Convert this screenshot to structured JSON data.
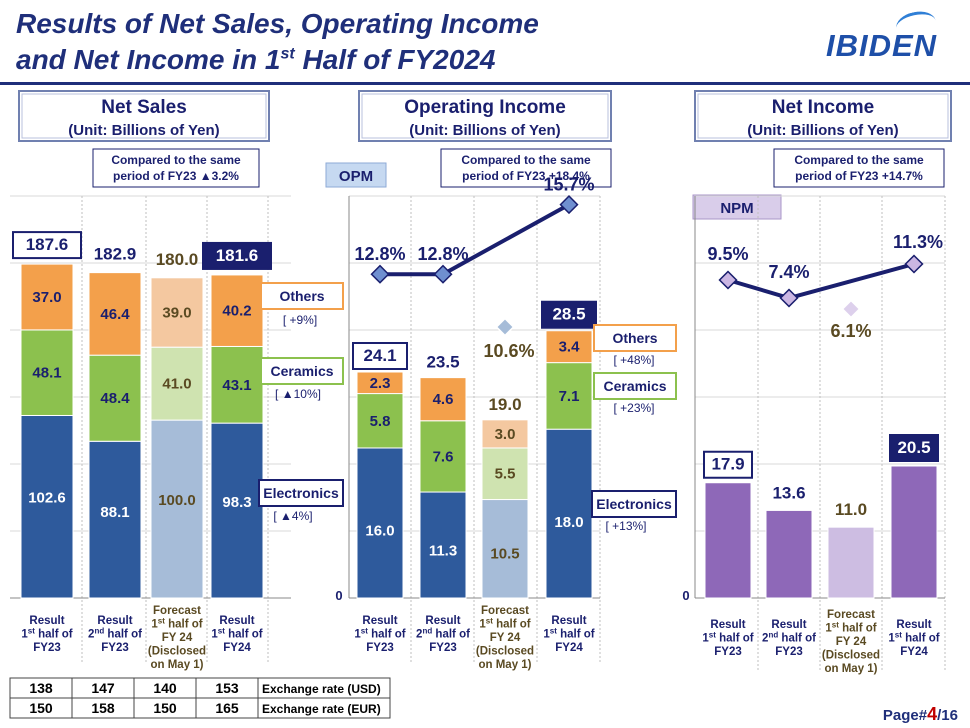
{
  "title": {
    "line1": "Results of Net Sales, Operating Income",
    "line2a": "and Net Income in 1",
    "line2sup": "st",
    "line2b": " Half of FY2024"
  },
  "logo": "IBIDEN",
  "page": {
    "prefix": "Page#",
    "current": "4",
    "suffix": "/16"
  },
  "categories": [
    {
      "lines": [
        "Result",
        "1st half of",
        "FY23"
      ]
    },
    {
      "lines": [
        "Result",
        "2nd half of",
        "FY23"
      ]
    },
    {
      "lines": [
        "Forecast",
        "1st half of",
        "FY 24",
        "(Disclosed",
        "on May 1)"
      ]
    },
    {
      "lines": [
        "Result",
        "1st half of",
        "FY24"
      ]
    }
  ],
  "exchange": {
    "usd_label": "Exchange rate (USD)",
    "eur_label": "Exchange rate (EUR)",
    "usd": [
      "138",
      "147",
      "140",
      "153"
    ],
    "eur": [
      "150",
      "158",
      "150",
      "165"
    ]
  },
  "colors": {
    "electronics": "#2e5a9c",
    "ceramics": "#8cc14e",
    "others": "#f3a04b",
    "electronics_fc": "#a6bcd8",
    "ceramics_fc": "#cfe3b0",
    "others_fc": "#f4c8a0",
    "purple": "#8e68b8",
    "purple_fc": "#cdbde2",
    "navy": "#1a1f6e",
    "olive": "#5a4a22"
  },
  "chart_data": [
    {
      "type": "bar",
      "panel": "net_sales",
      "title": "Net Sales",
      "subtitle": "(Unit: Billions of Yen)",
      "compare": [
        "Compared to the same",
        "period of FY23 ▲3.2%"
      ],
      "ylim": [
        0,
        190
      ],
      "series": [
        {
          "name": "Electronics",
          "values": [
            102.6,
            88.1,
            100.0,
            98.3
          ]
        },
        {
          "name": "Ceramics",
          "values": [
            48.1,
            48.4,
            41.0,
            43.1
          ]
        },
        {
          "name": "Others",
          "values": [
            37.0,
            46.4,
            39.0,
            40.2
          ]
        }
      ],
      "totals": [
        "187.6",
        "182.9",
        "180.0",
        "181.6"
      ],
      "legend": [
        {
          "name": "Others",
          "change": "[    +9%]"
        },
        {
          "name": "Ceramics",
          "change": "[ ▲10%]"
        },
        {
          "name": "Electronics",
          "change": "[ ▲4%]"
        }
      ]
    },
    {
      "type": "bar",
      "panel": "operating_income",
      "title": "Operating  Income",
      "subtitle": "(Unit: Billions of Yen)",
      "compare": [
        "Compared to the same",
        "period of FY23 +18.4%"
      ],
      "ratio_label": "OPM",
      "ratio": [
        "12.8%",
        "12.8%",
        "10.6%",
        "15.7%"
      ],
      "ratio_values": [
        12.8,
        12.8,
        10.6,
        15.7
      ],
      "zero_label": "0",
      "ylim": [
        0,
        30
      ],
      "series": [
        {
          "name": "Electronics",
          "values": [
            16.0,
            11.3,
            10.5,
            18.0
          ]
        },
        {
          "name": "Ceramics",
          "values": [
            5.8,
            7.6,
            5.5,
            7.1
          ]
        },
        {
          "name": "Others",
          "values": [
            2.3,
            4.6,
            3.0,
            3.4
          ]
        }
      ],
      "totals": [
        "24.1",
        "23.5",
        "19.0",
        "28.5"
      ],
      "legend": [
        {
          "name": "Others",
          "change": "[   +48%]"
        },
        {
          "name": "Ceramics",
          "change": "[   +23%]"
        },
        {
          "name": "Electronics",
          "change": "[ +13%]"
        }
      ]
    },
    {
      "type": "bar",
      "panel": "net_income",
      "title": "Net  Income",
      "subtitle": "(Unit: Billions of Yen)",
      "compare": [
        "Compared to the same",
        "period of FY23 +14.7%"
      ],
      "ratio_label": "NPM",
      "ratio": [
        "9.5%",
        "7.4%",
        "6.1%",
        "11.3%"
      ],
      "ratio_values": [
        9.5,
        7.4,
        6.1,
        11.3
      ],
      "zero_label": "0",
      "ylim": [
        0,
        30
      ],
      "series": [
        {
          "name": "Net Income",
          "values": [
            17.9,
            13.6,
            11.0,
            20.5
          ]
        }
      ],
      "totals": [
        "17.9",
        "13.6",
        "11.0",
        "20.5"
      ]
    }
  ]
}
